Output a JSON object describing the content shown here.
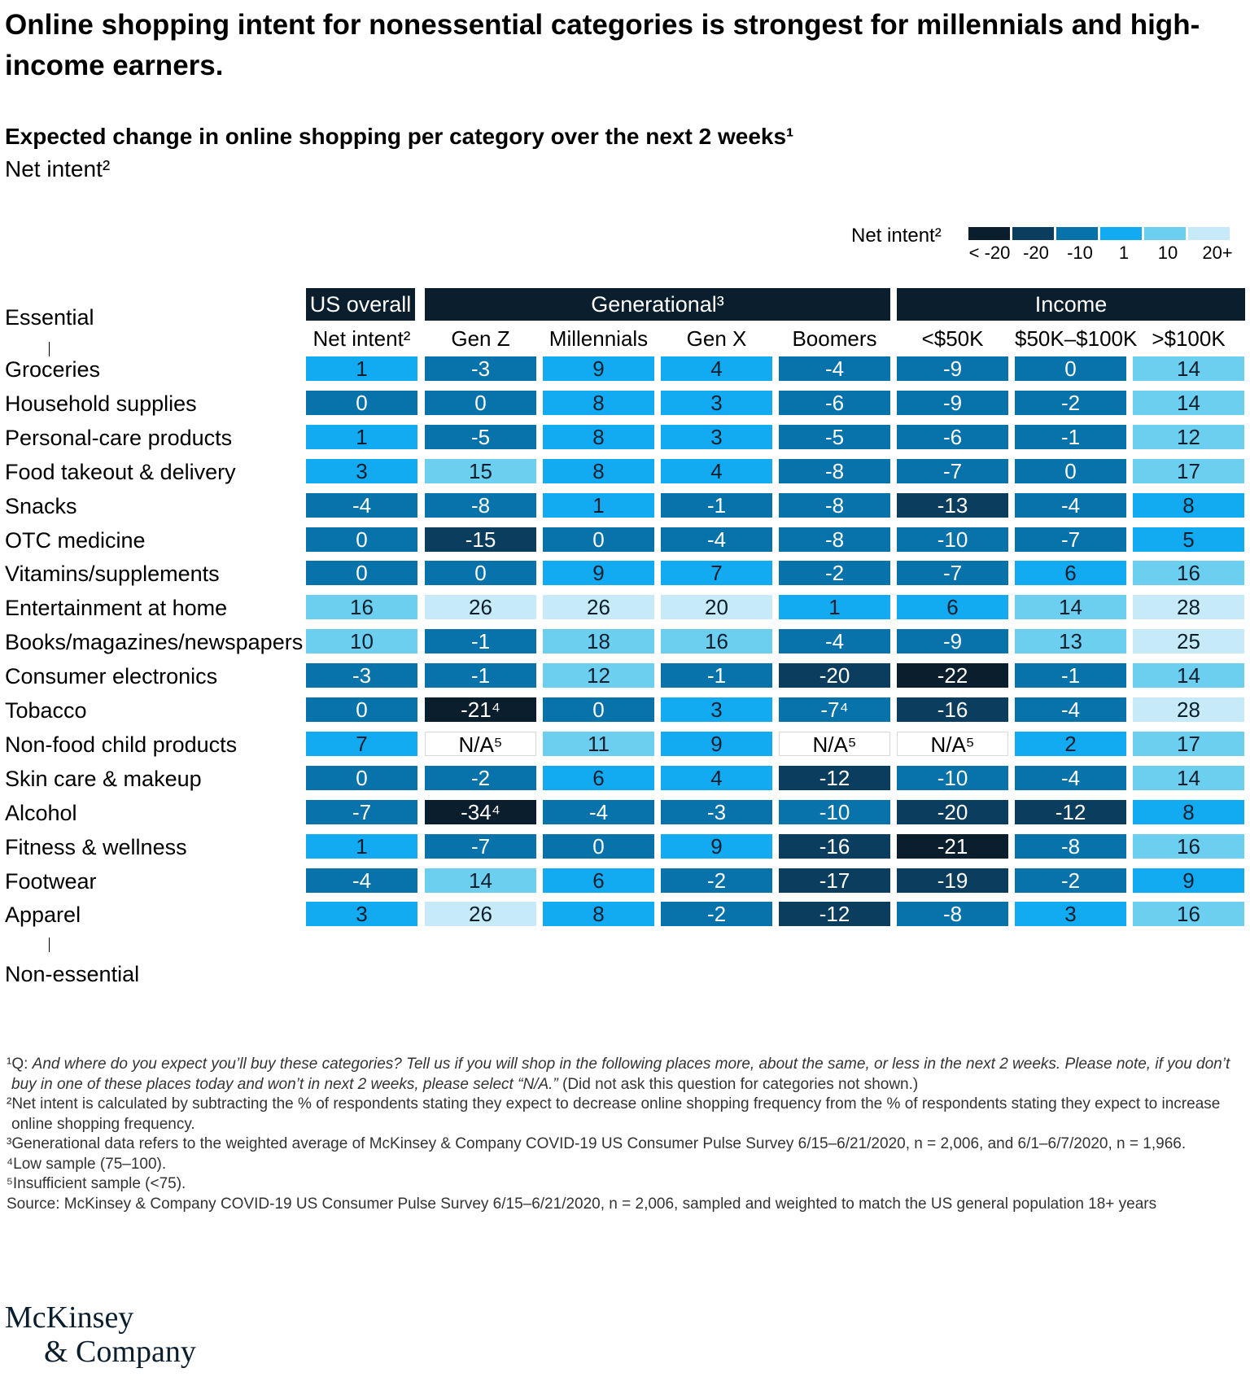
{
  "title": "Online shopping intent for nonessential categories is strongest for millennials and high-income earners.",
  "subtitle": "Expected change in online shopping per category over the next 2 weeks¹",
  "subtitle2": "Net intent²",
  "legend": {
    "title": "Net intent²",
    "labels": [
      "< -20",
      "-20",
      "-10",
      "1",
      "10",
      "20+"
    ],
    "colors": [
      "#0b1e2e",
      "#0b3e5e",
      "#0872aa",
      "#12aaf0",
      "#6ccfef",
      "#c6eaf8"
    ]
  },
  "axis": {
    "top": "Essential",
    "bottom": "Non-essential"
  },
  "groups": [
    {
      "label": "US overall"
    },
    {
      "label": "Generational³"
    },
    {
      "label": "Income"
    }
  ],
  "columns": [
    "Net intent²",
    "Gen Z",
    "Millennials",
    "Gen X",
    "Boomers",
    "<$50K",
    "$50K–$100K",
    ">$100K"
  ],
  "chart_data": {
    "type": "heatmap",
    "title": "Expected change in online shopping per category over the next 2 weeks¹",
    "columns": [
      "Net intent²",
      "Gen Z",
      "Millennials",
      "Gen X",
      "Boomers",
      "<$50K",
      "$50K–$100K",
      ">$100K"
    ],
    "rows": [
      {
        "label": "Groceries",
        "values": [
          "1",
          "-3",
          "9",
          "4",
          "-4",
          "-9",
          "0",
          "14"
        ]
      },
      {
        "label": "Household supplies",
        "values": [
          "0",
          "0",
          "8",
          "3",
          "-6",
          "-9",
          "-2",
          "14"
        ]
      },
      {
        "label": "Personal-care products",
        "values": [
          "1",
          "-5",
          "8",
          "3",
          "-5",
          "-6",
          "-1",
          "12"
        ]
      },
      {
        "label": "Food takeout & delivery",
        "values": [
          "3",
          "15",
          "8",
          "4",
          "-8",
          "-7",
          "0",
          "17"
        ]
      },
      {
        "label": "Snacks",
        "values": [
          "-4",
          "-8",
          "1",
          "-1",
          "-8",
          "-13",
          "-4",
          "8"
        ]
      },
      {
        "label": "OTC medicine",
        "values": [
          "0",
          "-15",
          "0",
          "-4",
          "-8",
          "-10",
          "-7",
          "5"
        ]
      },
      {
        "label": "Vitamins/supplements",
        "values": [
          "0",
          "0",
          "9",
          "7",
          "-2",
          "-7",
          "6",
          "16"
        ]
      },
      {
        "label": "Entertainment at home",
        "values": [
          "16",
          "26",
          "26",
          "20",
          "1",
          "6",
          "14",
          "28"
        ]
      },
      {
        "label": "Books/magazines/newspapers",
        "values": [
          "10",
          "-1",
          "18",
          "16",
          "-4",
          "-9",
          "13",
          "25"
        ]
      },
      {
        "label": "Consumer electronics",
        "values": [
          "-3",
          "-1",
          "12",
          "-1",
          "-20",
          "-22",
          "-1",
          "14"
        ]
      },
      {
        "label": "Tobacco",
        "values": [
          "0",
          "-21⁴",
          "0",
          "3",
          "-7⁴",
          "-16",
          "-4",
          "28"
        ]
      },
      {
        "label": "Non-food child products",
        "values": [
          "7",
          "N/A⁵",
          "11",
          "9",
          "N/A⁵",
          "N/A⁵",
          "2",
          "17"
        ]
      },
      {
        "label": "Skin care & makeup",
        "values": [
          "0",
          "-2",
          "6",
          "4",
          "-12",
          "-10",
          "-4",
          "14"
        ]
      },
      {
        "label": "Alcohol",
        "values": [
          "-7",
          "-34⁴",
          "-4",
          "-3",
          "-10",
          "-20",
          "-12",
          "8"
        ]
      },
      {
        "label": "Fitness & wellness",
        "values": [
          "1",
          "-7",
          "0",
          "9",
          "-16",
          "-21",
          "-8",
          "16"
        ]
      },
      {
        "label": "Footwear",
        "values": [
          "-4",
          "14",
          "6",
          "-2",
          "-17",
          "-19",
          "-2",
          "9"
        ]
      },
      {
        "label": "Apparel",
        "values": [
          "3",
          "26",
          "8",
          "-2",
          "-12",
          "-8",
          "3",
          "16"
        ]
      }
    ]
  },
  "footnotes": {
    "q_mark": "¹Q: ",
    "q_text": "And where do you expect you’ll buy these categories? Tell us if you will shop in the following places more, about the same, or less in the next 2 weeks. Please note, if you don’t buy in one of these places today and won’t in next 2 weeks, please select “N/A.”",
    "q_tail": " (Did not ask this question for categories not shown.)",
    "n2": "²Net intent is calculated by subtracting the % of respondents stating they expect to decrease online shopping frequency from the % of respondents stating they expect to increase online shopping frequency.",
    "n3": "³Generational data refers to the weighted average of McKinsey & Company COVID-19 US Consumer Pulse Survey 6/15–6/21/2020, n = 2,006, and 6/1–6/7/2020, n = 1,966.",
    "n4": "⁴Low sample (75–100).",
    "n5": "⁵Insufficient sample (<75).",
    "source": "Source: McKinsey & Company COVID-19 US Consumer Pulse Survey 6/15–6/21/2020, n = 2,006, sampled and weighted to match the US general population 18+ years"
  },
  "brand": {
    "line1": "McKinsey",
    "line2": "& Company"
  }
}
